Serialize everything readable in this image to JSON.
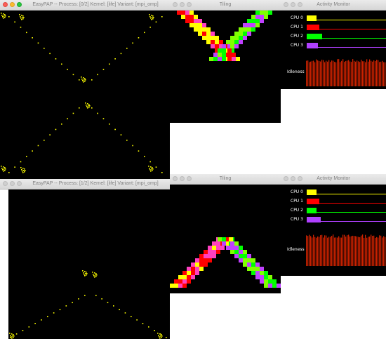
{
  "top": {
    "easypap": {
      "title": "EasyPAP -- Process: [0/2]   Kernel: [life]   Variant: [mpi_omp]"
    },
    "tiling": {
      "title": "Tiling"
    },
    "monitor": {
      "title": "Activity Monitor",
      "cpus": [
        {
          "label": "CPU  0",
          "color": "#ffff00",
          "load": 0.35
        },
        {
          "label": "CPU  1",
          "color": "#ff0000",
          "load": 0.45
        },
        {
          "label": "CPU  2",
          "color": "#00ff00",
          "load": 0.55
        },
        {
          "label": "CPU  3",
          "color": "#b040ff",
          "load": 0.4
        }
      ],
      "idleness_label": "Idleness"
    }
  },
  "bottom": {
    "easypap": {
      "title": "EasyPAP -- Process: [1/2]   Kernel: [life]   Variant: [mpi_omp]"
    },
    "tiling": {
      "title": "Tiling"
    },
    "monitor": {
      "title": "Activity Monitor",
      "cpus": [
        {
          "label": "CPU  0",
          "color": "#ffff00",
          "load": 0.35
        },
        {
          "label": "CPU  1",
          "color": "#ff0000",
          "load": 0.45
        },
        {
          "label": "CPU  2",
          "color": "#00ff00",
          "load": 0.35
        },
        {
          "label": "CPU  3",
          "color": "#b040ff",
          "load": 0.5
        }
      ],
      "idleness_label": "Idleness"
    }
  },
  "tile_palette": [
    "#ff0000",
    "#00ff00",
    "#ffff00",
    "#c040ff",
    "#ff40c0",
    "#80ff00"
  ]
}
